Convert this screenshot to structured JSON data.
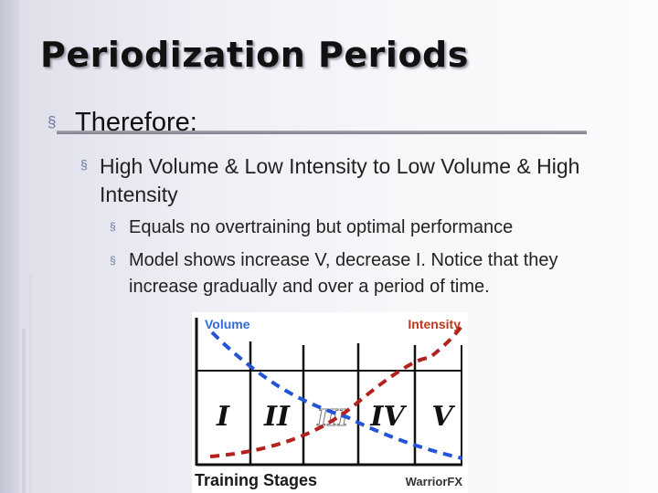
{
  "slide": {
    "title": "Periodization Periods",
    "bullet_l1": "Therefore:",
    "bullet_l2": "High Volume & Low Intensity to Low Volume & High Intensity",
    "bullets_l3": [
      "Equals no overtraining but optimal performance",
      "Model shows increase V, decrease I. Notice that they increase gradually and over a period of time."
    ],
    "bullet_glyph": "§"
  },
  "figure": {
    "label_volume": "Volume",
    "label_intensity": "Intensity",
    "stages": [
      "I",
      "II",
      "III",
      "IV",
      "V"
    ],
    "caption": "Training Stages",
    "brand": "WarriorFX",
    "colors": {
      "volume": "#2454d6",
      "intensity": "#b3211f",
      "label_volume": "#2f6ad8",
      "label_intensity": "#c2371c"
    }
  }
}
